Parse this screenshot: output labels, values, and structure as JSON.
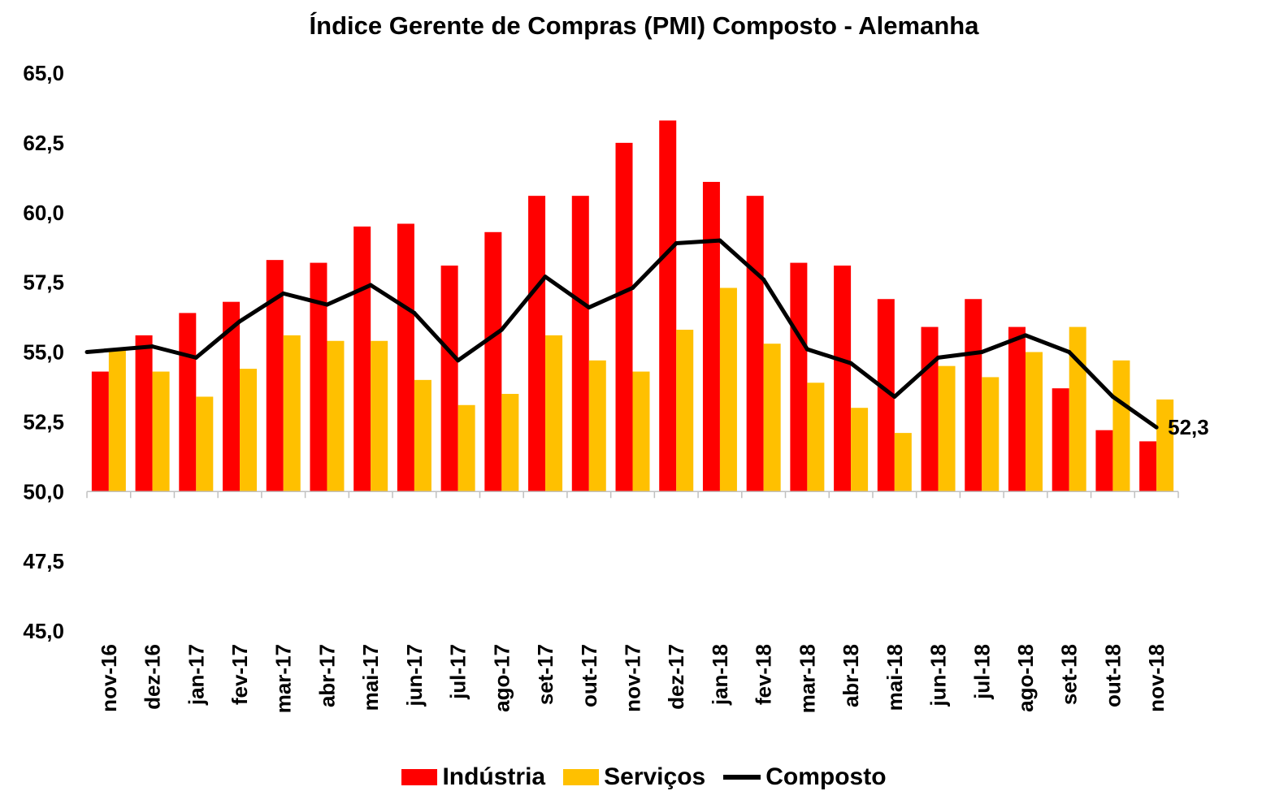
{
  "chart_data": {
    "type": "bar",
    "title": "Índice Gerente de Compras (PMI) Composto - Alemanha",
    "xlabel": "",
    "ylabel": "",
    "ylim": [
      45,
      65
    ],
    "y_ticks": [
      "45,0",
      "47,5",
      "50,0",
      "52,5",
      "55,0",
      "57,5",
      "60,0",
      "62,5",
      "65,0"
    ],
    "y_tick_values": [
      45,
      47.5,
      50,
      52.5,
      55,
      57.5,
      60,
      62.5,
      65
    ],
    "bar_baseline": 50,
    "grid": false,
    "legend_position": "bottom",
    "categories": [
      "nov-16",
      "dez-16",
      "jan-17",
      "fev-17",
      "mar-17",
      "abr-17",
      "mai-17",
      "jun-17",
      "jul-17",
      "ago-17",
      "set-17",
      "out-17",
      "nov-17",
      "dez-17",
      "jan-18",
      "fev-18",
      "mar-18",
      "abr-18",
      "mai-18",
      "jun-18",
      "jul-18",
      "ago-18",
      "set-18",
      "out-18",
      "nov-18"
    ],
    "series": [
      {
        "name": "Indústria",
        "type": "bar",
        "color": "#ff0000",
        "values": [
          54.3,
          55.6,
          56.4,
          56.8,
          58.3,
          58.2,
          59.5,
          59.6,
          58.1,
          59.3,
          60.6,
          60.6,
          62.5,
          63.3,
          61.1,
          60.6,
          58.2,
          58.1,
          56.9,
          55.9,
          56.9,
          55.9,
          53.7,
          52.2,
          51.8
        ]
      },
      {
        "name": "Serviços",
        "type": "bar",
        "color": "#ffc000",
        "values": [
          55.1,
          54.3,
          53.4,
          54.4,
          55.6,
          55.4,
          55.4,
          54.0,
          53.1,
          53.5,
          55.6,
          54.7,
          54.3,
          55.8,
          57.3,
          55.3,
          53.9,
          53.0,
          52.1,
          54.5,
          54.1,
          55.0,
          55.9,
          54.7,
          53.3
        ]
      },
      {
        "name": "Composto",
        "type": "line",
        "color": "#000000",
        "values": [
          55.0,
          55.2,
          54.8,
          56.1,
          57.1,
          56.7,
          57.4,
          56.4,
          54.7,
          55.8,
          57.7,
          56.6,
          57.3,
          58.9,
          59.0,
          57.6,
          55.1,
          54.6,
          53.4,
          54.8,
          55.0,
          55.6,
          55.0,
          53.4,
          52.3
        ]
      }
    ],
    "annotations": [
      {
        "series": "Composto",
        "category": "nov-18",
        "text": "52,3"
      }
    ]
  }
}
